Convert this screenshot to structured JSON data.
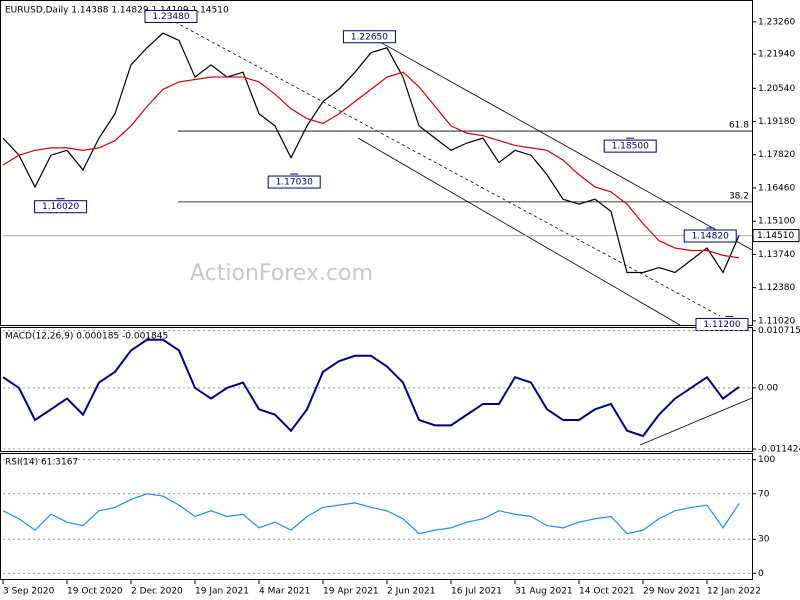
{
  "chart_data": [
    {
      "type": "line",
      "title": "EURUSD,Daily 1.14388 1.14829 1.14109 1.14510",
      "watermark": "ActionForex.com",
      "ylim": [
        1.1085,
        1.2395
      ],
      "yticks": [
        {
          "value": 1.2326,
          "label": "1.23260"
        },
        {
          "value": 1.2194,
          "label": "1.21940"
        },
        {
          "value": 1.2054,
          "label": "1.20540"
        },
        {
          "value": 1.1918,
          "label": "1.19180"
        },
        {
          "value": 1.1782,
          "label": "1.17820"
        },
        {
          "value": 1.1646,
          "label": "1.16460"
        },
        {
          "value": 1.151,
          "label": "1.15100"
        },
        {
          "value": 1.1374,
          "label": "1.13740"
        },
        {
          "value": 1.1238,
          "label": "1.12380"
        },
        {
          "value": 1.1102,
          "label": "1.11020"
        }
      ],
      "series": [
        {
          "color": "#000000",
          "values": [
            1.185,
            1.178,
            1.165,
            1.178,
            1.18,
            1.172,
            1.185,
            1.195,
            1.215,
            1.222,
            1.228,
            1.225,
            1.21,
            1.215,
            1.21,
            1.212,
            1.195,
            1.19,
            1.177,
            1.19,
            1.2,
            1.205,
            1.212,
            1.22,
            1.222,
            1.21,
            1.19,
            1.185,
            1.18,
            1.183,
            1.185,
            1.175,
            1.18,
            1.178,
            1.17,
            1.16,
            1.158,
            1.16,
            1.155,
            1.13,
            1.13,
            1.132,
            1.13,
            1.135,
            1.14,
            1.13,
            1.1451
          ]
        },
        {
          "color": "#d40000",
          "values": [
            1.174,
            1.178,
            1.18,
            1.181,
            1.181,
            1.18,
            1.181,
            1.184,
            1.19,
            1.198,
            1.205,
            1.208,
            1.209,
            1.21,
            1.21,
            1.21,
            1.208,
            1.203,
            1.197,
            1.193,
            1.191,
            1.195,
            1.2,
            1.205,
            1.21,
            1.212,
            1.206,
            1.198,
            1.19,
            1.187,
            1.186,
            1.184,
            1.182,
            1.181,
            1.18,
            1.176,
            1.17,
            1.165,
            1.163,
            1.158,
            1.15,
            1.143,
            1.14,
            1.139,
            1.139,
            1.137,
            1.136
          ]
        }
      ],
      "last_price": {
        "value": 1.1451,
        "label": "1.14510"
      },
      "levels": [
        {
          "label": "61.8",
          "value": 1.1879
        },
        {
          "label": "38.2",
          "value": 1.1589
        }
      ],
      "annotations": [
        {
          "label": "1.23480",
          "value": 1.2348,
          "x": 10.5
        },
        {
          "label": "1.16020",
          "value": 1.1602,
          "x": 3.6
        },
        {
          "label": "1.17030",
          "value": 1.1703,
          "x": 18.2
        },
        {
          "label": "1.22650",
          "value": 1.2265,
          "x": 22.9
        },
        {
          "label": "1.18500",
          "value": 1.185,
          "x": 39.2
        },
        {
          "label": "1.11200",
          "value": 1.112,
          "x": 45.4
        },
        {
          "label": "1.14820",
          "value": 1.1482,
          "x": 44.2
        }
      ]
    },
    {
      "type": "line",
      "title": "MACD(12,26,9) 0.000185 -0.001845",
      "ylim": [
        -0.0118,
        0.0112
      ],
      "yticks": [
        0.010715,
        {
          "value": 0,
          "label": "0.00"
        },
        -0.011424
      ],
      "series": [
        {
          "color": "#00008b",
          "values": [
            0.002,
            0.0,
            -0.006,
            -0.004,
            -0.002,
            -0.005,
            0.001,
            0.003,
            0.007,
            0.009,
            0.009,
            0.007,
            0.0,
            -0.002,
            0.0,
            0.001,
            -0.004,
            -0.005,
            -0.008,
            -0.004,
            0.003,
            0.005,
            0.006,
            0.006,
            0.004,
            0.001,
            -0.006,
            -0.007,
            -0.007,
            -0.005,
            -0.003,
            -0.003,
            0.002,
            0.001,
            -0.004,
            -0.006,
            -0.006,
            -0.004,
            -0.003,
            -0.008,
            -0.009,
            -0.005,
            -0.002,
            0.0,
            0.002,
            -0.002,
            0.000185
          ]
        }
      ]
    },
    {
      "type": "line",
      "title": "RSI(14) 61.3167",
      "ylim": [
        -5,
        105
      ],
      "yticks": [
        100,
        70,
        30,
        0
      ],
      "categories": [
        "3 Sep 2020",
        null,
        null,
        null,
        "19 Oct 2020",
        null,
        null,
        null,
        "2 Dec 2020",
        null,
        null,
        null,
        "19 Jan 2021",
        null,
        null,
        null,
        "4 Mar 2021",
        null,
        null,
        null,
        "19 Apr 2021",
        null,
        null,
        null,
        "2 Jun 2021",
        null,
        null,
        null,
        "16 Jul 2021",
        null,
        null,
        null,
        "31 Aug 2021",
        null,
        null,
        null,
        "14 Oct 2021",
        null,
        null,
        null,
        "29 Nov 2021",
        null,
        null,
        null,
        "12 Jan 2022",
        null,
        null
      ],
      "series": [
        {
          "color": "#1e90ff",
          "values": [
            55,
            48,
            38,
            52,
            45,
            42,
            55,
            58,
            65,
            70,
            68,
            60,
            50,
            55,
            50,
            52,
            40,
            45,
            38,
            50,
            58,
            60,
            62,
            58,
            55,
            48,
            35,
            38,
            40,
            45,
            48,
            55,
            52,
            50,
            42,
            40,
            45,
            48,
            50,
            35,
            38,
            48,
            55,
            58,
            60,
            40,
            61.3167
          ]
        }
      ]
    }
  ]
}
